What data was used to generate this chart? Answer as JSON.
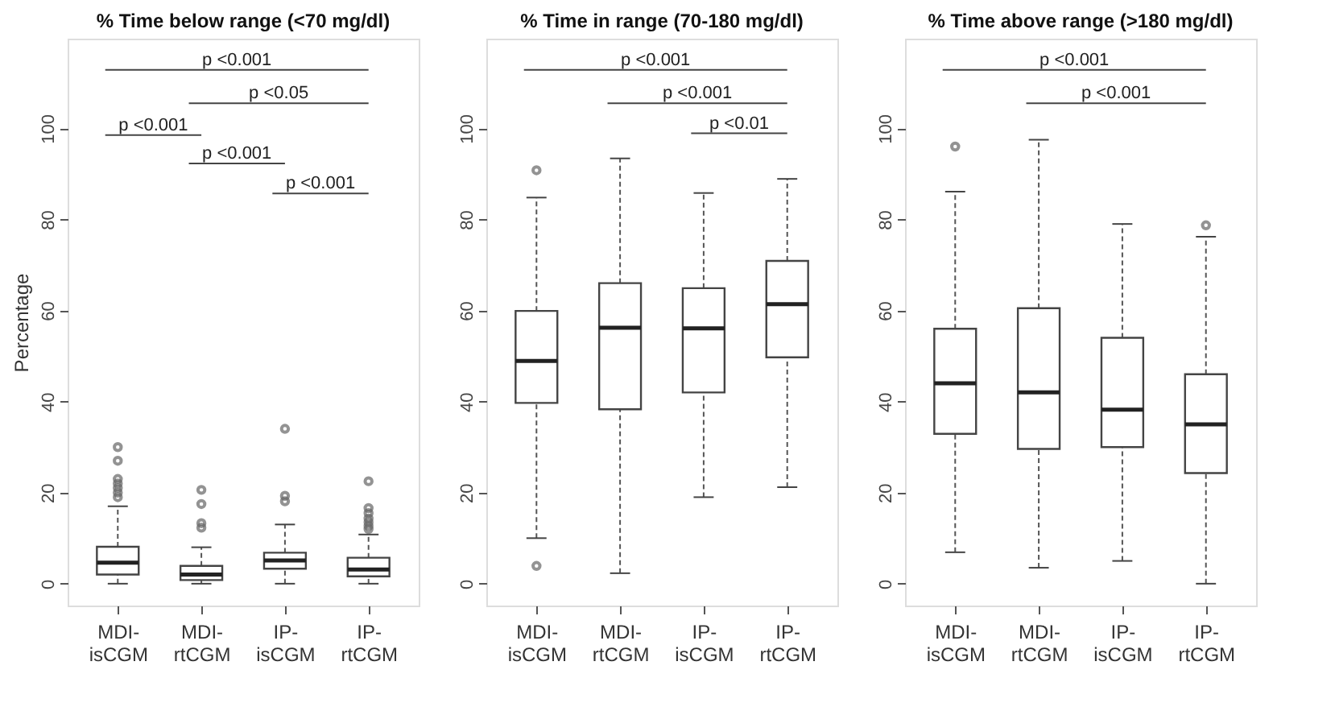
{
  "chart_data": [
    {
      "type": "box",
      "title": "% Time below range (<70 mg/dl)",
      "ylabel": "Percentage",
      "categories": [
        "MDI-isCGM",
        "MDI-rtCGM",
        "IP-isCGM",
        "IP-rtCGM"
      ],
      "boxes": [
        {
          "low": 0,
          "q1": 2.0,
          "median": 4.6,
          "q3": 8.1,
          "high": 17,
          "outliers": [
            19,
            20,
            21,
            22,
            23,
            27,
            30
          ]
        },
        {
          "low": 0,
          "q1": 0.8,
          "median": 2.0,
          "q3": 3.9,
          "high": 8,
          "outliers": [
            12.3,
            13.3,
            17.5,
            20.6
          ]
        },
        {
          "low": 0,
          "q1": 3.3,
          "median": 5.1,
          "q3": 6.8,
          "high": 13,
          "outliers": [
            18.1,
            19.3,
            34
          ]
        },
        {
          "low": 0,
          "q1": 1.6,
          "median": 3.1,
          "q3": 5.7,
          "high": 10.8,
          "outliers": [
            12,
            12.7,
            13.5,
            14.3,
            15.5,
            16.6,
            22.5
          ]
        }
      ],
      "ylim": [
        -4.8,
        119.7
      ],
      "yticks": [
        0,
        20,
        40,
        60,
        80,
        100
      ],
      "grid": false,
      "annotations": [
        "p <0.001",
        "p <0.05",
        "p <0.001",
        "p <0.001",
        "p <0.001"
      ]
    },
    {
      "type": "box",
      "title": "% Time in range (70-180 mg/dl)",
      "categories": [
        "MDI-isCGM",
        "MDI-rtCGM",
        "IP-isCGM",
        "IP-rtCGM"
      ],
      "boxes": [
        {
          "low": 10,
          "q1": 39.7,
          "median": 48.9,
          "q3": 59.9,
          "high": 84.8,
          "outliers": [
            3.9,
            90.8
          ]
        },
        {
          "low": 2.3,
          "q1": 38.3,
          "median": 56.2,
          "q3": 66,
          "high": 93.4
        },
        {
          "low": 19,
          "q1": 42,
          "median": 56.1,
          "q3": 64.9,
          "high": 85.8
        },
        {
          "low": 21.2,
          "q1": 49.7,
          "median": 61.4,
          "q3": 70.9,
          "high": 88.9
        }
      ],
      "ylim": [
        -4.8,
        119.7
      ],
      "yticks": [
        0,
        20,
        40,
        60,
        80,
        100
      ],
      "grid": false,
      "annotations": [
        "p <0.001",
        "p <0.001",
        "p <0.01"
      ]
    },
    {
      "type": "box",
      "title": "% Time above range (>180 mg/dl)",
      "categories": [
        "MDI-isCGM",
        "MDI-rtCGM",
        "IP-isCGM",
        "IP-rtCGM"
      ],
      "boxes": [
        {
          "low": 6.9,
          "q1": 32.9,
          "median": 44,
          "q3": 56,
          "high": 86.1,
          "outliers": [
            96
          ]
        },
        {
          "low": 3.5,
          "q1": 29.6,
          "median": 42,
          "q3": 60.5,
          "high": 97.5
        },
        {
          "low": 5,
          "q1": 30,
          "median": 38.2,
          "q3": 54,
          "high": 79
        },
        {
          "low": 0,
          "q1": 24.3,
          "median": 35,
          "q3": 46,
          "high": 76.2,
          "outliers": [
            78.7
          ]
        }
      ],
      "ylim": [
        -4.8,
        119.7
      ],
      "yticks": [
        0,
        20,
        40,
        60,
        80,
        100
      ],
      "grid": false,
      "annotations": [
        "p <0.001",
        "p <0.001"
      ]
    }
  ]
}
